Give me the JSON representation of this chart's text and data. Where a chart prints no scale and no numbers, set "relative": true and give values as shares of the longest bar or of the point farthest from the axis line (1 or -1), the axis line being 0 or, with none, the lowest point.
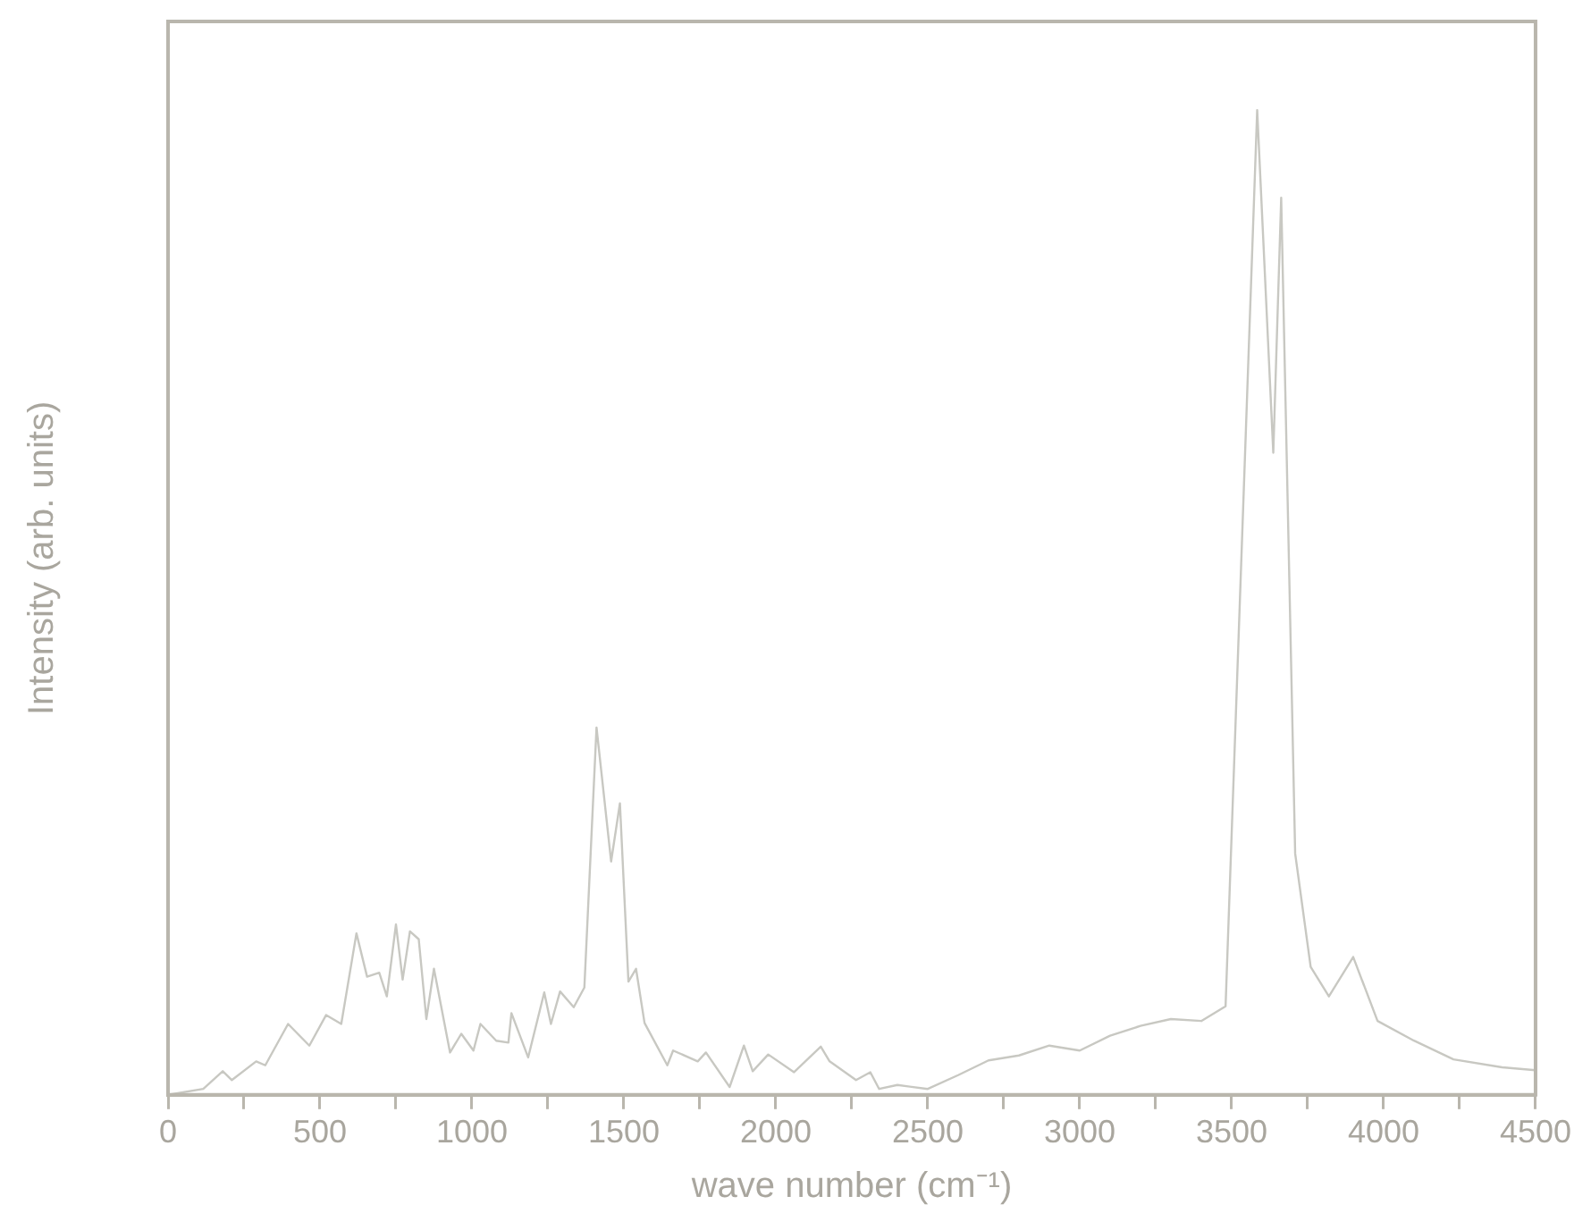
{
  "chart_data": {
    "type": "line",
    "relative": true,
    "xlabel": "wave number (cm⁻¹)",
    "ylabel": "Intensity (arb. units)",
    "xlim": [
      0,
      4500
    ],
    "xticks": [
      0,
      {
        "value": 250,
        "label": null
      },
      500,
      {
        "value": 750,
        "label": null
      },
      1000,
      {
        "value": 1250,
        "label": null
      },
      1500,
      {
        "value": 1750,
        "label": null
      },
      2000,
      {
        "value": 2250,
        "label": null
      },
      2500,
      {
        "value": 2750,
        "label": null
      },
      3000,
      {
        "value": 3250,
        "label": null
      },
      3500,
      {
        "value": 3750,
        "label": null
      },
      4000,
      {
        "value": 4250,
        "label": null
      },
      4500
    ],
    "grid": false,
    "legend": false,
    "marker": "none",
    "line_style": "solid",
    "series": [
      {
        "color": "#c8c8c2",
        "x": [
          0,
          116,
          180,
          210,
          290,
          320,
          395,
          465,
          520,
          570,
          620,
          655,
          695,
          720,
          750,
          772,
          796,
          825,
          850,
          875,
          928,
          965,
          1005,
          1028,
          1080,
          1120,
          1130,
          1185,
          1238,
          1260,
          1290,
          1335,
          1370,
          1410,
          1458,
          1487,
          1515,
          1540,
          1568,
          1643,
          1662,
          1743,
          1770,
          1848,
          1895,
          1924,
          1975,
          2060,
          2148,
          2177,
          2264,
          2311,
          2340,
          2400,
          2500,
          2600,
          2700,
          2800,
          2900,
          3000,
          3100,
          3200,
          3300,
          3400,
          3480,
          3584,
          3637,
          3663,
          3709,
          3760,
          3820,
          3900,
          3980,
          4100,
          4230,
          4390,
          4500
        ],
        "values": [
          0,
          0.006,
          0.024,
          0.015,
          0.034,
          0.03,
          0.072,
          0.05,
          0.081,
          0.072,
          0.164,
          0.12,
          0.124,
          0.1,
          0.173,
          0.117,
          0.166,
          0.158,
          0.077,
          0.128,
          0.043,
          0.062,
          0.045,
          0.072,
          0.055,
          0.053,
          0.083,
          0.038,
          0.104,
          0.072,
          0.105,
          0.089,
          0.109,
          0.373,
          0.237,
          0.296,
          0.115,
          0.128,
          0.073,
          0.03,
          0.045,
          0.034,
          0.043,
          0.008,
          0.05,
          0.024,
          0.041,
          0.023,
          0.049,
          0.034,
          0.015,
          0.023,
          0.006,
          0.01,
          0.006,
          0.02,
          0.035,
          0.04,
          0.05,
          0.045,
          0.06,
          0.07,
          0.077,
          0.075,
          0.09,
          1.0,
          0.652,
          0.911,
          0.245,
          0.13,
          0.1,
          0.14,
          0.075,
          0.055,
          0.036,
          0.028,
          0.025
        ]
      }
    ]
  }
}
